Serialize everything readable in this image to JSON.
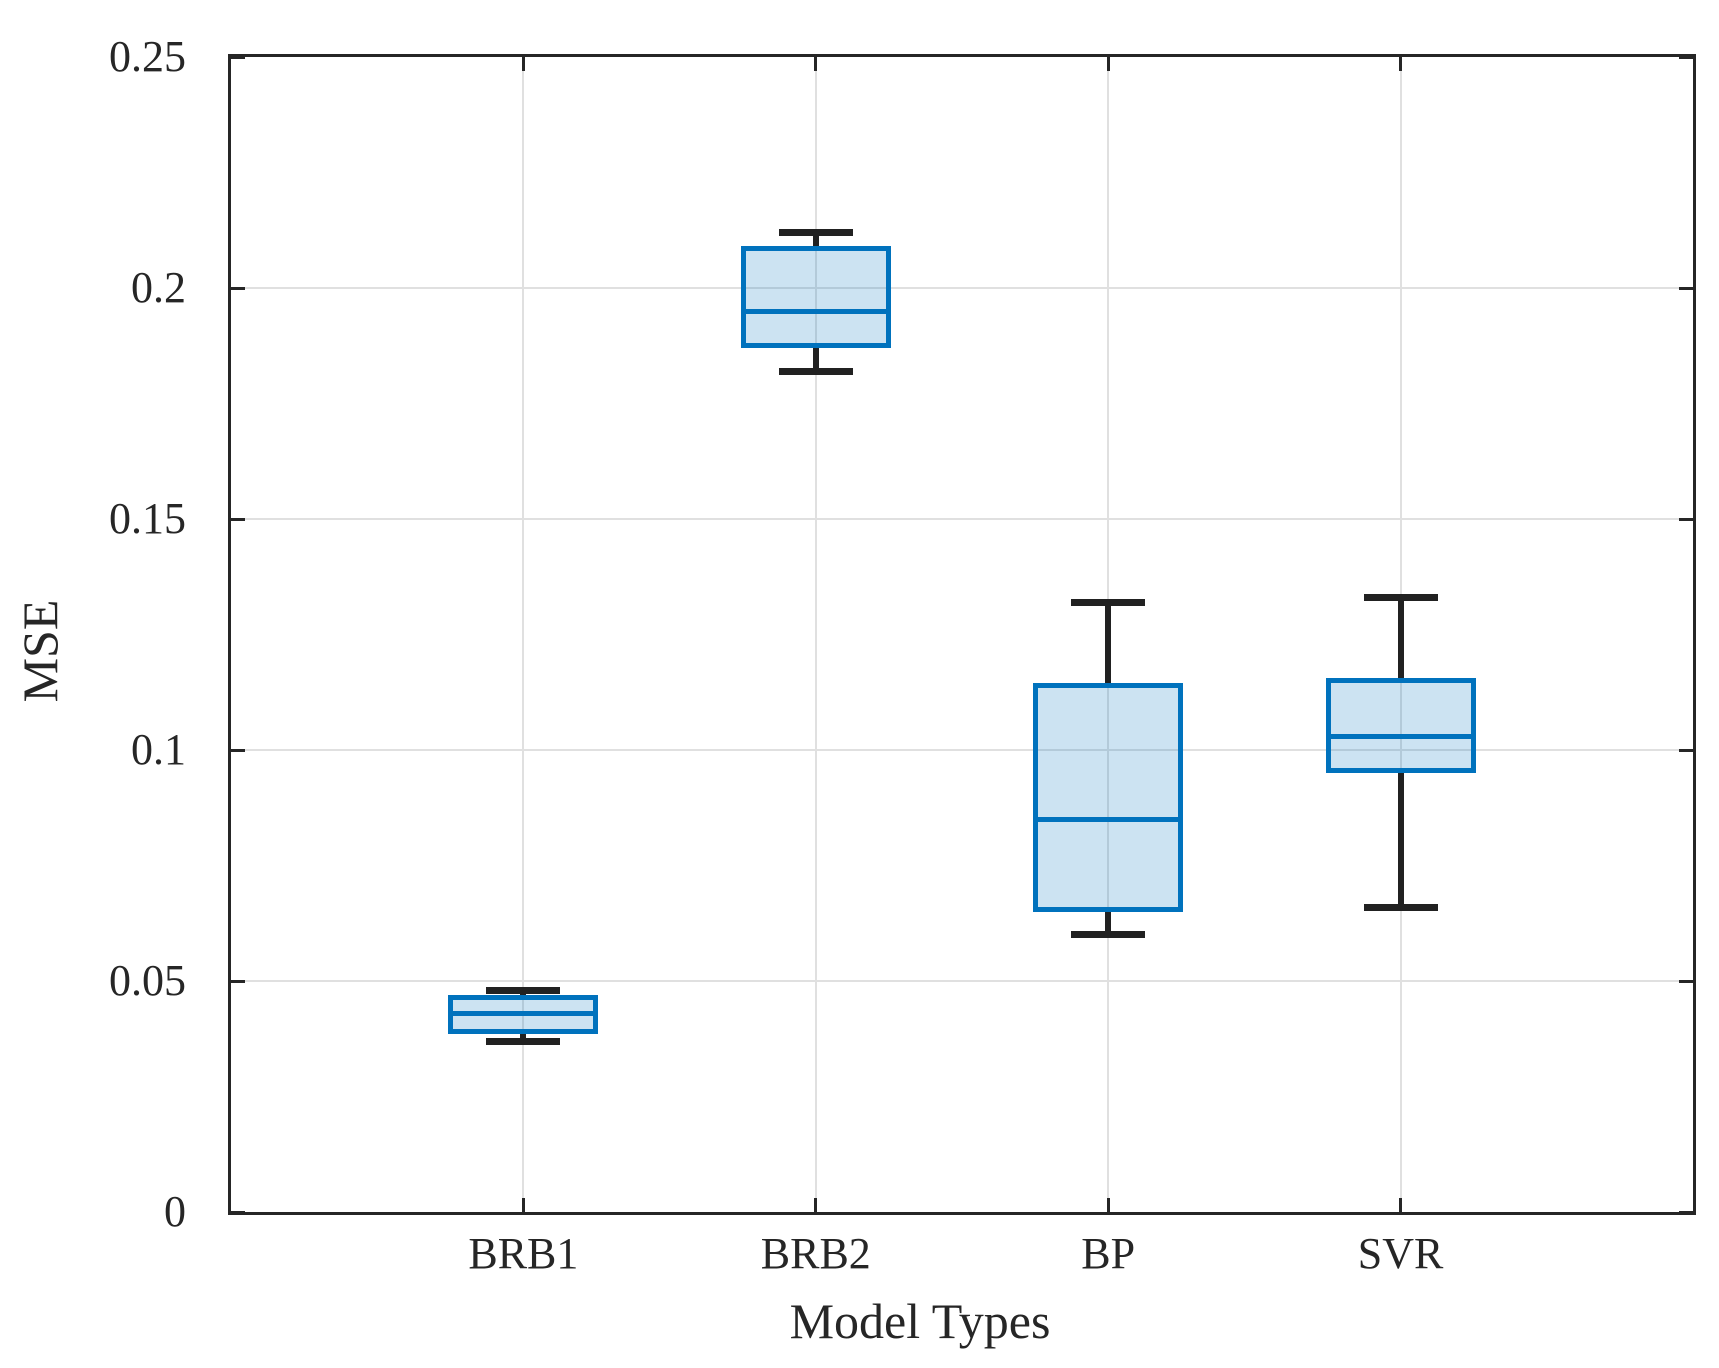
{
  "chart_data": {
    "type": "boxplot",
    "title": "",
    "xlabel": "Model Types",
    "ylabel": "MSE",
    "categories": [
      "BRB1",
      "BRB2",
      "BP",
      "SVR"
    ],
    "x_positions": [
      1,
      2,
      3,
      4
    ],
    "xlim": [
      0,
      5
    ],
    "ylim": [
      0,
      0.25
    ],
    "yticks": [
      0,
      0.05,
      0.1,
      0.15,
      0.2,
      0.25
    ],
    "ytick_labels": [
      "0",
      "0.05",
      "0.1",
      "0.15",
      "0.2",
      "0.25"
    ],
    "grid": true,
    "legend": null,
    "series": [
      {
        "name": "BRB1",
        "whisker_low": 0.037,
        "q1": 0.0385,
        "median": 0.043,
        "q3": 0.047,
        "whisker_high": 0.048
      },
      {
        "name": "BRB2",
        "whisker_low": 0.182,
        "q1": 0.187,
        "median": 0.195,
        "q3": 0.209,
        "whisker_high": 0.212
      },
      {
        "name": "BP",
        "whisker_low": 0.06,
        "q1": 0.065,
        "median": 0.085,
        "q3": 0.1145,
        "whisker_high": 0.132
      },
      {
        "name": "SVR",
        "whisker_low": 0.066,
        "q1": 0.095,
        "median": 0.103,
        "q3": 0.1155,
        "whisker_high": 0.133
      }
    ],
    "colors": {
      "box_edge": "#0072BD",
      "box_fill_rgba": "rgba(0,114,189,0.2)",
      "median": "#0072BD",
      "whisker": "#212121",
      "axis": "#262626",
      "grid": "#e0e0e0",
      "text": "#262626",
      "background": "#ffffff"
    }
  }
}
